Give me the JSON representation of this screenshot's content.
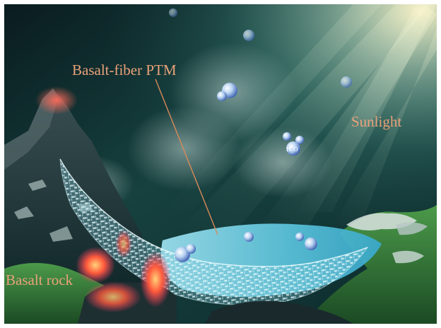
{
  "labels": {
    "membrane": "Basalt-fiber PTM",
    "sunlight": "Sunlight",
    "rock": "Basalt rock",
    "molecule_h": "H",
    "molecule_sub": "2",
    "molecule_o": "O"
  },
  "colors": {
    "label_text": "#e9a27a",
    "leader_line": "#d9895a",
    "sky_dark": "#0b1f22",
    "sky_teal": "#1f5a56",
    "water": "#5fc6de",
    "grass": "#2f7f3a",
    "lava": "#ff5a3c"
  }
}
